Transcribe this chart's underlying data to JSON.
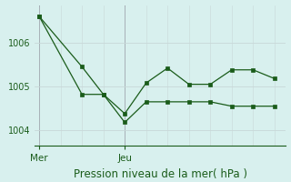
{
  "background_color": "#d8f0ee",
  "grid_color": "#c8d8d8",
  "line_color": "#1a5c1a",
  "line1_x": [
    0,
    2,
    3,
    4,
    5,
    6,
    7,
    8,
    9,
    10,
    11
  ],
  "line1_y": [
    1006.6,
    1005.45,
    1004.82,
    1004.38,
    1005.08,
    1005.42,
    1005.05,
    1005.05,
    1005.38,
    1005.38,
    1005.18
  ],
  "line2_x": [
    0,
    2,
    3,
    4,
    5,
    6,
    7,
    8,
    9,
    10,
    11
  ],
  "line2_y": [
    1006.6,
    1004.82,
    1004.82,
    1004.18,
    1004.65,
    1004.65,
    1004.65,
    1004.65,
    1004.55,
    1004.55,
    1004.55
  ],
  "mer_x": 0,
  "jeu_x": 4,
  "yticks": [
    1004,
    1005,
    1006
  ],
  "ylim": [
    1003.65,
    1006.85
  ],
  "xlim": [
    -0.2,
    11.5
  ],
  "xlabel": "Pression niveau de la mer( hPa )",
  "axis_label_color": "#1a5c1a",
  "vline_color": "#808090"
}
